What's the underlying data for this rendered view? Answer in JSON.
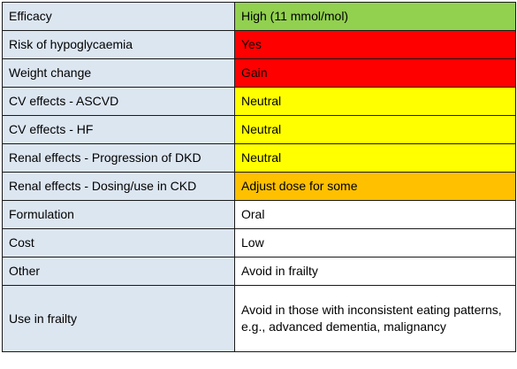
{
  "rows": [
    {
      "label": "Efficacy",
      "value": "High (11 mmol/mol)",
      "color": "#92d050"
    },
    {
      "label": "Risk of hypoglycaemia",
      "value": "Yes",
      "color": "#ff0000"
    },
    {
      "label": "Weight change",
      "value": "Gain",
      "color": "#ff0000"
    },
    {
      "label": "CV effects - ASCVD",
      "value": "Neutral",
      "color": "#ffff00"
    },
    {
      "label": "CV effects - HF",
      "value": "Neutral",
      "color": "#ffff00"
    },
    {
      "label": "Renal effects - Progression of DKD",
      "value": "Neutral",
      "color": "#ffff00"
    },
    {
      "label": "Renal effects - Dosing/use in CKD",
      "value": "Adjust dose for some",
      "color": "#ffc000"
    },
    {
      "label": "Formulation",
      "value": "Oral",
      "color": "#ffffff"
    },
    {
      "label": "Cost",
      "value": "Low",
      "color": "#ffffff"
    },
    {
      "label": "Other",
      "value": "Avoid in frailty",
      "color": "#ffffff"
    },
    {
      "label": "Use in frailty",
      "value": "Avoid in those with inconsistent eating patterns, e.g., advanced dementia, malignancy",
      "color": "#ffffff"
    }
  ],
  "colors": {
    "label_background": "#dce6f1",
    "border": "#1a1a1a"
  }
}
